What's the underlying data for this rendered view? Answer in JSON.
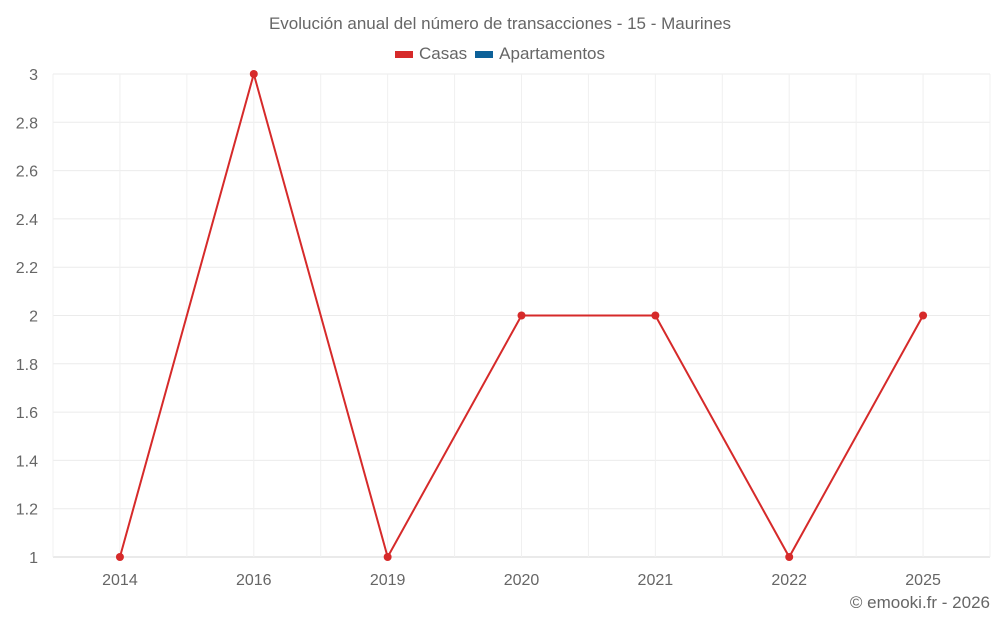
{
  "chart_data": {
    "type": "line",
    "title": "Evolución anual del número de transacciones - 15 - Maurines",
    "categories": [
      "2014",
      "2016",
      "2019",
      "2020",
      "2021",
      "2022",
      "2025"
    ],
    "series": [
      {
        "name": "Casas",
        "color": "#d62a2a",
        "values": [
          1,
          3,
          1,
          2,
          2,
          1,
          2
        ]
      },
      {
        "name": "Apartamentos",
        "color": "#0d6199",
        "values": []
      }
    ],
    "xlabel": "",
    "ylabel": "",
    "ylim": [
      1,
      3
    ],
    "yticks": [
      "1",
      "1.2",
      "1.4",
      "1.6",
      "1.8",
      "2",
      "2.2",
      "2.4",
      "2.6",
      "2.8",
      "3"
    ],
    "grid": true,
    "legend_position": "top"
  },
  "legend": {
    "items": [
      {
        "label": "Casas",
        "color": "#d62a2a"
      },
      {
        "label": "Apartamentos",
        "color": "#0d6199"
      }
    ]
  },
  "credit": "© emooki.fr - 2026"
}
